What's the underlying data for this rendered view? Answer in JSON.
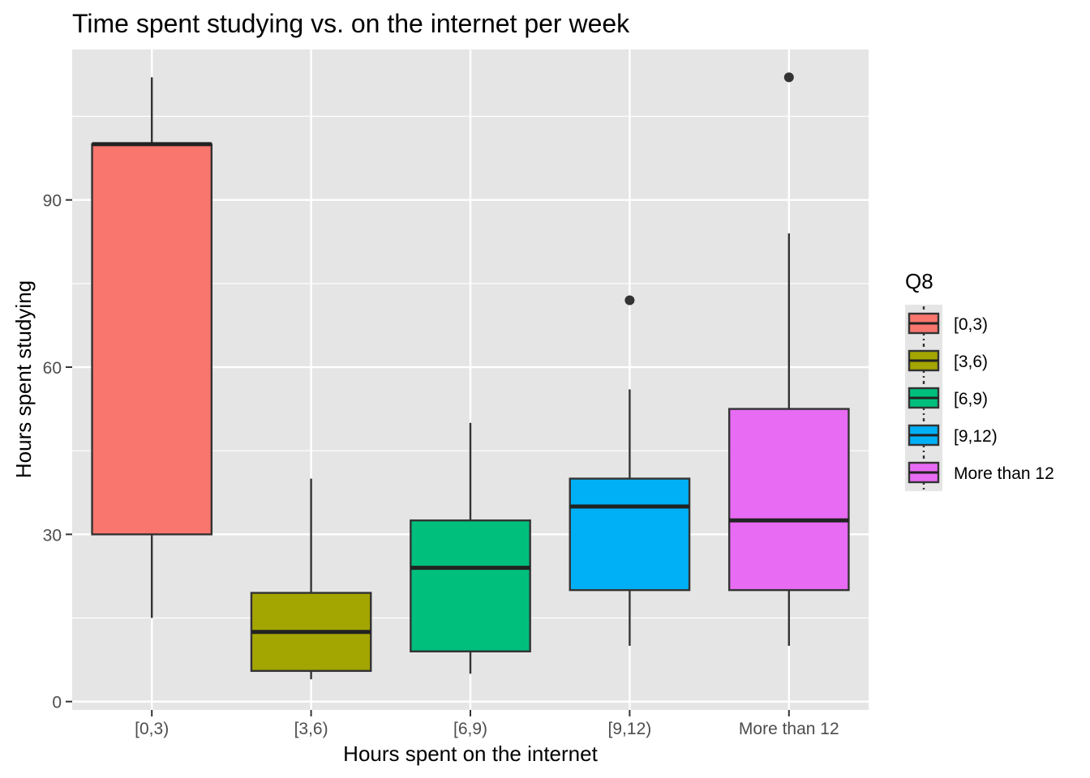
{
  "chart_data": {
    "type": "boxplot",
    "title": "Time spent studying vs. on the internet per week",
    "xlabel": "Hours spent on the internet",
    "ylabel": "Hours spent studying",
    "categories": [
      "[0,3)",
      "[3,6)",
      "[6,9)",
      "[9,12)",
      "More than 12"
    ],
    "ylim": [
      -1.5,
      117
    ],
    "yticks": [
      0,
      30,
      60,
      90
    ],
    "grid": true,
    "legend": {
      "title": "Q8",
      "placement": "right",
      "entries": [
        "[0,3)",
        "[3,6)",
        "[6,9)",
        "[9,12)",
        "More than 12"
      ]
    },
    "colors": [
      "#F8766D",
      "#A3A500",
      "#00BF7D",
      "#00B0F6",
      "#E76BF3"
    ],
    "panel_bg": "#E5E5E5",
    "boxes": [
      {
        "category": "[0,3)",
        "whisker_low": 15,
        "q1": 30,
        "median": 100,
        "q3": 100,
        "whisker_high": 112,
        "outliers": []
      },
      {
        "category": "[3,6)",
        "whisker_low": 4,
        "q1": 5.5,
        "median": 12.5,
        "q3": 19.5,
        "whisker_high": 40,
        "outliers": []
      },
      {
        "category": "[6,9)",
        "whisker_low": 5,
        "q1": 9,
        "median": 24,
        "q3": 32.5,
        "whisker_high": 50,
        "outliers": []
      },
      {
        "category": "[9,12)",
        "whisker_low": 10,
        "q1": 20,
        "median": 35,
        "q3": 40,
        "whisker_high": 56,
        "outliers": [
          72
        ]
      },
      {
        "category": "More than 12",
        "whisker_low": 10,
        "q1": 20,
        "median": 32.5,
        "q3": 52.5,
        "whisker_high": 84,
        "outliers": [
          112
        ]
      }
    ]
  }
}
